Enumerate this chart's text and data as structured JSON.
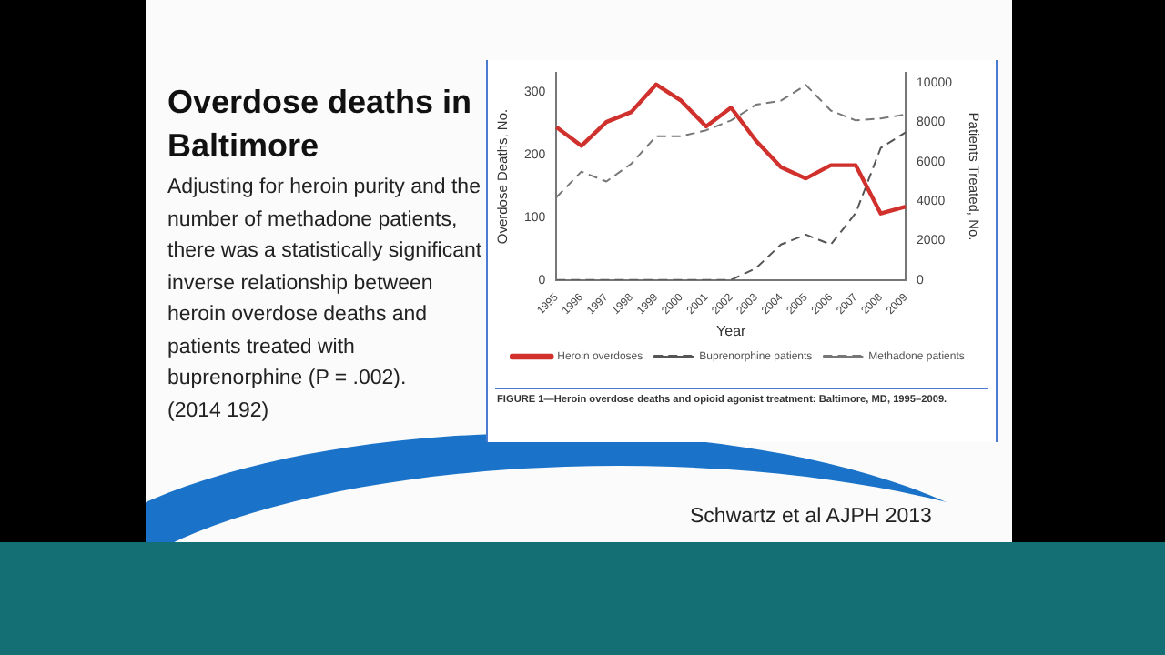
{
  "chart_data": {
    "type": "line",
    "title": "Overdose deaths in Baltimore",
    "subtitle": "Adjusting for heroin purity and the number of methadone patients, there was a statistically significant inverse relationship between heroin overdose deaths and patients treated with buprenorphine (P = .002).",
    "annotations": [
      "(2014 192)",
      "FIGURE 1—Heroin overdose deaths and opioid agonist treatment: Baltimore, MD, 1995–2009.",
      "Schwartz et al AJPH 2013"
    ],
    "xlabel": "Year",
    "ylabel": "Overdose Deaths, No.",
    "y2label": "Patients Treated, No.",
    "categories": [
      "1995",
      "1996",
      "1997",
      "1998",
      "1999",
      "2000",
      "2001",
      "2002",
      "2003",
      "2004",
      "2005",
      "2006",
      "2007",
      "2008",
      "2009"
    ],
    "series": [
      {
        "name": "Heroin overdoses",
        "color": "#d0312d",
        "line_style": "solid",
        "values": [
          244,
          214,
          252,
          268,
          312,
          286,
          245,
          275,
          222,
          180,
          162,
          183,
          183,
          106,
          117
        ]
      },
      {
        "name": "Buprenorphine patients",
        "color": "#555555",
        "line_style": "dashed",
        "axis": "y2",
        "values": [
          0,
          0,
          0,
          0,
          0,
          0,
          0,
          0,
          600,
          1800,
          2300,
          1800,
          3400,
          6700,
          7500
        ]
      },
      {
        "name": "Methadone patients",
        "color": "#777777",
        "line_style": "dashed",
        "axis": "y2",
        "values": [
          4200,
          5500,
          5000,
          5900,
          7300,
          7300,
          7600,
          8100,
          8900,
          9100,
          9900,
          8600,
          8100,
          8200,
          8400
        ]
      }
    ],
    "ylim": [
      0,
      330
    ],
    "yticks": [
      0,
      100,
      200,
      300
    ],
    "y2lim": [
      0,
      10500
    ],
    "y2ticks": [
      0,
      2000,
      4000,
      6000,
      8000,
      10000
    ],
    "grid": false,
    "legend": "bottom",
    "marker": "none"
  }
}
